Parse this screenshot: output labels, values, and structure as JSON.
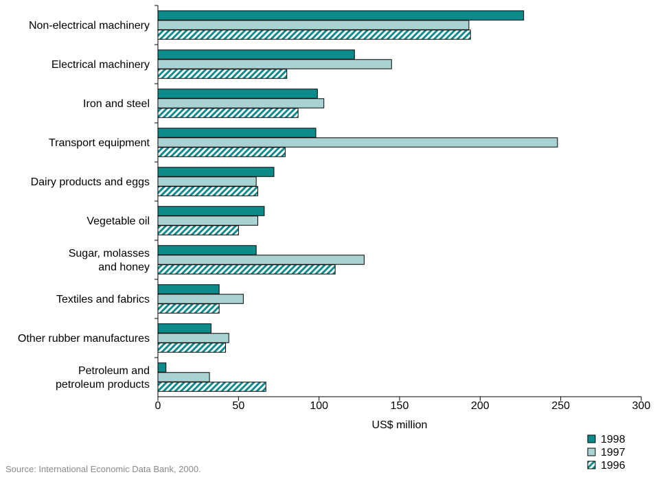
{
  "chart_data": {
    "type": "bar",
    "orientation": "horizontal",
    "categories": [
      [
        "Non-electrical machinery"
      ],
      [
        "Electrical machinery"
      ],
      [
        "Iron and steel"
      ],
      [
        "Transport equipment"
      ],
      [
        "Dairy products and eggs"
      ],
      [
        "Vegetable oil"
      ],
      [
        "Sugar, molasses",
        "and honey"
      ],
      [
        "Textiles and fabrics"
      ],
      [
        "Other rubber manufactures"
      ],
      [
        "Petroleum and",
        "petroleum products"
      ]
    ],
    "series": [
      {
        "name": "1998",
        "values": [
          227,
          122,
          99,
          98,
          72,
          66,
          61,
          38,
          33,
          5
        ],
        "color": "#0d8a8a",
        "pattern": "solid"
      },
      {
        "name": "1997",
        "values": [
          193,
          145,
          103,
          248,
          61,
          62,
          128,
          53,
          44,
          32
        ],
        "color": "#a9d3d2",
        "pattern": "solid"
      },
      {
        "name": "1996",
        "values": [
          194,
          80,
          87,
          79,
          62,
          50,
          110,
          38,
          42,
          67
        ],
        "color": "#0d8a8a",
        "pattern": "hatched"
      }
    ],
    "xlabel": "US$ million",
    "xlim": [
      0,
      300
    ],
    "xticks": [
      "0",
      "50",
      "100",
      "150",
      "200",
      "250",
      "300"
    ],
    "legend_position": "bottom-right",
    "grid": false
  },
  "source_note": "Source: International Economic Data Bank, 2000."
}
